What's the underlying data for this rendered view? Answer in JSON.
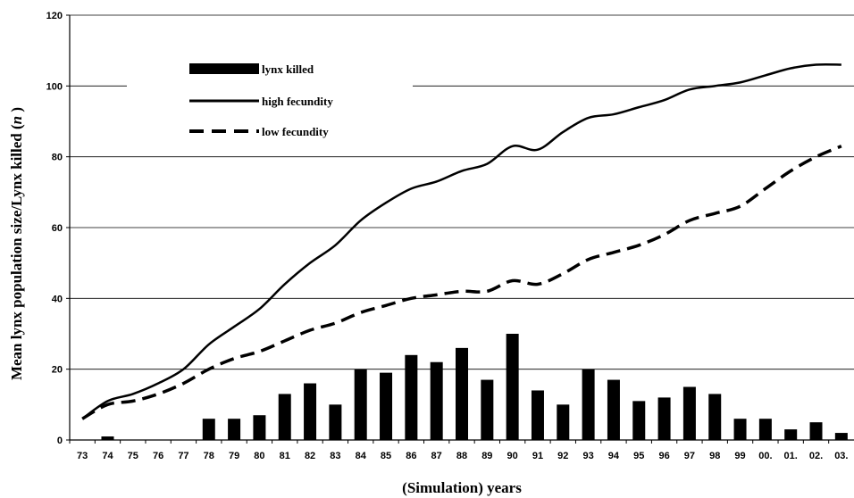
{
  "chart_data": {
    "type": "bar",
    "xlabel": "(Simulation) years",
    "ylabel": "Mean lynx population size/Lynx killed (",
    "ylabel_italic": "n",
    "ylabel_end": " )",
    "ylim": [
      0,
      120
    ],
    "yticks": [
      "0",
      "20",
      "40",
      "60",
      "80",
      "100",
      "120"
    ],
    "ytick_values": [
      0,
      20,
      40,
      60,
      80,
      100,
      120
    ],
    "grid": true,
    "legend_position": "top-left",
    "categories": [
      "73",
      "74",
      "75",
      "76",
      "77",
      "78",
      "79",
      "80",
      "81",
      "82",
      "83",
      "84",
      "85",
      "86",
      "87",
      "88",
      "89",
      "90",
      "91",
      "92",
      "93",
      "94",
      "95",
      "96",
      "97",
      "98",
      "99",
      "00.",
      "01.",
      "02.",
      "03."
    ],
    "series": [
      {
        "name": "lynx killed",
        "type": "bar",
        "color": "#000000",
        "values": [
          0,
          1,
          0,
          0,
          0,
          6,
          6,
          7,
          13,
          16,
          10,
          20,
          19,
          24,
          22,
          26,
          17,
          30,
          14,
          10,
          20,
          17,
          11,
          12,
          15,
          13,
          6,
          6,
          3,
          5,
          2
        ]
      },
      {
        "name": "high fecundity",
        "type": "line",
        "style": "solid",
        "color": "#000000",
        "values": [
          6,
          11,
          13,
          16,
          20,
          27,
          32,
          37,
          44,
          50,
          55,
          62,
          67,
          71,
          73,
          76,
          78,
          83,
          82,
          87,
          91,
          92,
          94,
          96,
          99,
          100,
          101,
          103,
          105,
          106,
          106
        ]
      },
      {
        "name": "low fecundity",
        "type": "line",
        "style": "dashed",
        "color": "#000000",
        "values": [
          6,
          10,
          11,
          13,
          16,
          20,
          23,
          25,
          28,
          31,
          33,
          36,
          38,
          40,
          41,
          42,
          42,
          45,
          44,
          47,
          51,
          53,
          55,
          58,
          62,
          64,
          66,
          71,
          76,
          80,
          83
        ]
      }
    ]
  }
}
